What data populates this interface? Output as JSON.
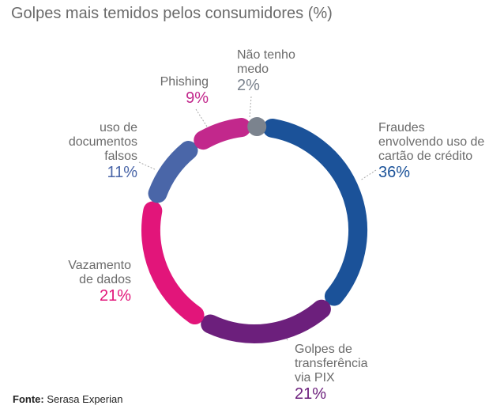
{
  "chart_data": {
    "type": "pie",
    "style": "donut",
    "title": "Golpes mais temidos pelos consumidores (%)",
    "slices": [
      {
        "label": "Fraudes envolvendo uso de cartão de crédito",
        "value": 36,
        "display": "36%",
        "color": "#1b5299"
      },
      {
        "label": "Golpes de transferência via PIX",
        "value": 21,
        "display": "21%",
        "color": "#6c1f7c"
      },
      {
        "label": "Vazamento de dados",
        "value": 21,
        "display": "21%",
        "color": "#e2157a"
      },
      {
        "label": "uso de documentos falsos",
        "value": 11,
        "display": "11%",
        "color": "#4a66a8"
      },
      {
        "label": "Phishing",
        "value": 9,
        "display": "9%",
        "color": "#c2288c"
      },
      {
        "label": "Não tenho medo",
        "value": 2,
        "display": "2%",
        "color": "#7b838e"
      }
    ],
    "source_prefix": "Fonte:",
    "source": "Serasa Experian"
  }
}
